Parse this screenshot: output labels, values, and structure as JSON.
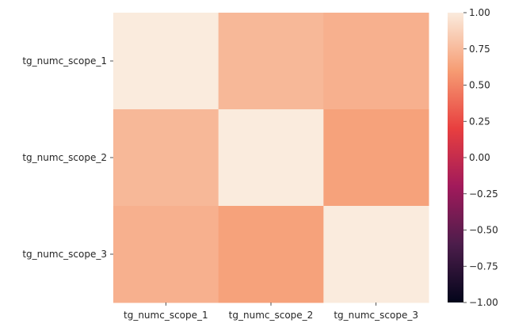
{
  "chart_data": {
    "type": "heatmap",
    "title": "",
    "xlabel": "",
    "ylabel": "",
    "x_categories": [
      "tg_numc_scope_1",
      "tg_numc_scope_2",
      "tg_numc_scope_3"
    ],
    "y_categories": [
      "tg_numc_scope_1",
      "tg_numc_scope_2",
      "tg_numc_scope_3"
    ],
    "values": [
      [
        1.0,
        0.74,
        0.7
      ],
      [
        0.74,
        1.0,
        0.63
      ],
      [
        0.7,
        0.63,
        1.0
      ]
    ],
    "colorbar": {
      "range": [
        -1.0,
        1.0
      ],
      "ticks": [
        "1.00",
        "0.75",
        "0.50",
        "0.25",
        "0.00",
        "−0.25",
        "−0.50",
        "−0.75",
        "−1.00"
      ],
      "colormap": "rocket",
      "colors": [
        "#03051a",
        "#4c1d4b",
        "#a11a5b",
        "#e83f3f",
        "#f69c73",
        "#faebdd"
      ]
    },
    "grid": false
  }
}
